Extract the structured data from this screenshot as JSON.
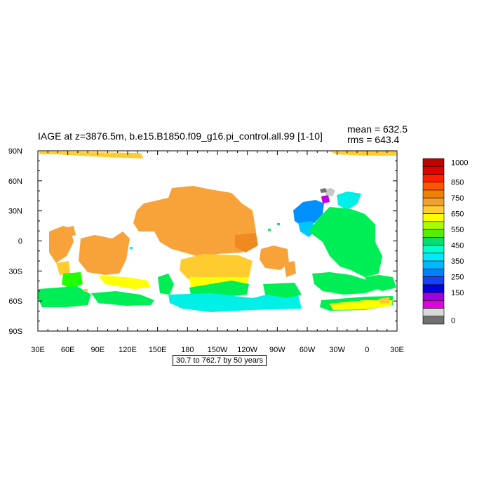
{
  "plot": {
    "title": "IAGE at z=3876.5m, b.e15.B1850.f09_g16.pi_control.all.99 [1-10]",
    "mean_text": "mean = 632.5",
    "rms_text": "rms = 643.4",
    "caption": "30.7 to 762.7 by 50 years"
  },
  "axes": {
    "lon_labels": [
      "30E",
      "60E",
      "90E",
      "120E",
      "150E",
      "180",
      "150W",
      "120W",
      "90W",
      "60W",
      "30W",
      "0",
      "30E"
    ],
    "lat_labels": [
      "90N",
      "60N",
      "30N",
      "0",
      "30S",
      "60S",
      "90S"
    ]
  },
  "colorbar": {
    "labels": [
      "1000",
      "850",
      "750",
      "650",
      "550",
      "450",
      "350",
      "250",
      "150",
      "0"
    ],
    "colors": [
      "#c00000",
      "#e00000",
      "#ff2000",
      "#ff5500",
      "#f08000",
      "#f0a030",
      "#ffcc30",
      "#ffff00",
      "#a8ff00",
      "#55ee00",
      "#00e070",
      "#00ffcc",
      "#00e8ff",
      "#00b8ff",
      "#0080ff",
      "#1840ff",
      "#0000e0",
      "#a000e0",
      "#e000e0",
      "#d8d8d8",
      "#707070"
    ]
  },
  "legend_colors": {
    "orange": "#f7a33a",
    "dark_orange": "#f08a20",
    "light_orange": "#ffcc30",
    "yellow": "#ffff00",
    "green": "#00ee55",
    "bright_green": "#22ff00",
    "cyan": "#00f0e8",
    "light_blue": "#00c8ff",
    "blue": "#0090ff",
    "magenta": "#c000e0",
    "grey": "#c8c8c8"
  }
}
